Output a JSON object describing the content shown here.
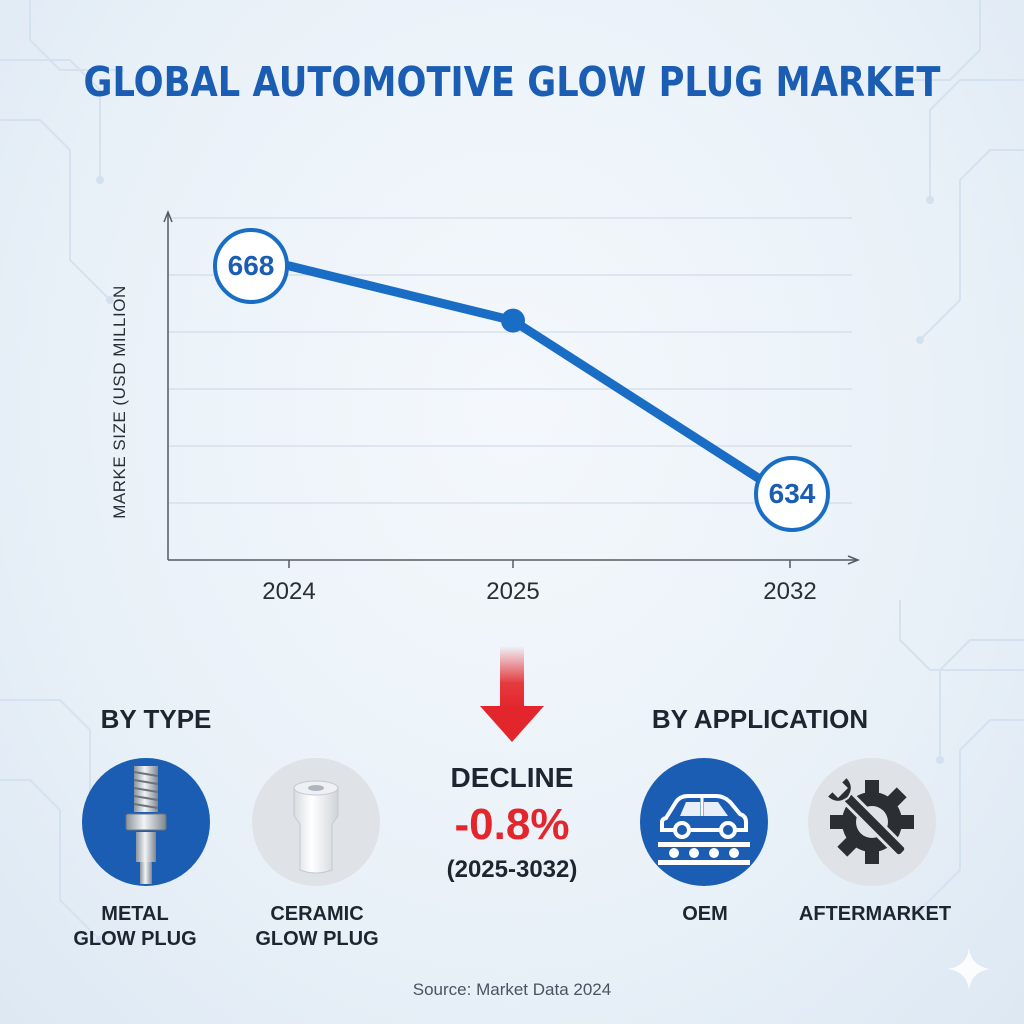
{
  "title": "GLOBAL AUTOMOTIVE GLOW PLUG MARKET",
  "chart_data": {
    "type": "line",
    "title": "GLOBAL AUTOMOTIVE GLOW PLUG MARKET",
    "ylabel": "MARKE SIZE (USD MILLION",
    "xlabel": "",
    "categories": [
      "2024",
      "2025",
      "2032"
    ],
    "series": [
      {
        "name": "Market Size",
        "values": [
          668,
          660,
          634
        ]
      }
    ],
    "point_labels": [
      "668",
      "",
      "634"
    ],
    "ylim": [
      625,
      675
    ],
    "grid": true
  },
  "by_type": {
    "heading": "BY TYPE",
    "items": [
      {
        "label_line1": "METAL",
        "label_line2": "GLOW PLUG",
        "icon": "metal-glow-plug-icon"
      },
      {
        "label_line1": "CERAMIC",
        "label_line2": "GLOW PLUG",
        "icon": "ceramic-glow-plug-icon"
      }
    ]
  },
  "decline": {
    "label": "DECLINE",
    "value": "-0.8%",
    "period": "(2025-3032)",
    "arrow_icon": "down-arrow-icon"
  },
  "by_application": {
    "heading": "BY APPLICATION",
    "items": [
      {
        "label": "OEM",
        "icon": "car-assembly-icon"
      },
      {
        "label": "AFTERMARKET",
        "icon": "gear-wrench-icon"
      }
    ]
  },
  "source": "Source: Market Data 2024",
  "colors": {
    "brand_blue": "#1a5db3",
    "line_blue": "#1a6dc4",
    "decline_red": "#e3262b"
  }
}
